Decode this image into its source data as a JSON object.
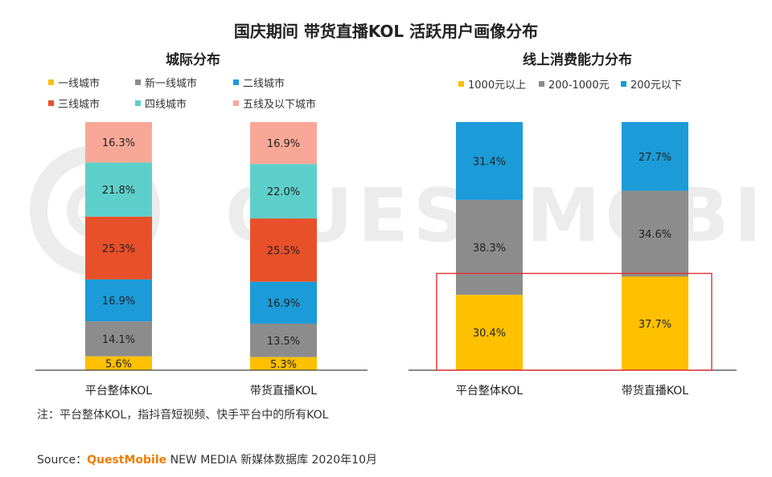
{
  "title": "国庆期间 带货直播KOL 活跃用户画像分布",
  "watermark": "QUESTMOBILE",
  "colors": {
    "tier1": "#FFC000",
    "new_tier1": "#8C8C8C",
    "tier2": "#1B9BD7",
    "tier3": "#E8502A",
    "tier4": "#5DCFCB",
    "tier5plus": "#F9A898",
    "above1000": "#FFC000",
    "mid": "#8C8C8C",
    "below200": "#1B9BD7",
    "highlight_box": "#E03030",
    "brand": "#F07D00"
  },
  "chart_data": [
    {
      "type": "bar",
      "stacked": true,
      "title": "城际分布",
      "categories": [
        "平台整体KOL",
        "带货直播KOL"
      ],
      "series": [
        {
          "name": "一线城市",
          "values": [
            5.6,
            5.3
          ]
        },
        {
          "name": "新一线城市",
          "values": [
            14.1,
            13.5
          ]
        },
        {
          "name": "二线城市",
          "values": [
            16.9,
            16.9
          ]
        },
        {
          "name": "三线城市",
          "values": [
            25.3,
            25.5
          ]
        },
        {
          "name": "四线城市",
          "values": [
            21.8,
            22.0
          ]
        },
        {
          "name": "五线及以下城市",
          "values": [
            16.3,
            16.9
          ]
        }
      ],
      "value_suffix": "%",
      "ylim": [
        0,
        100
      ],
      "legend": "top"
    },
    {
      "type": "bar",
      "stacked": true,
      "title": "线上消费能力分布",
      "categories": [
        "平台整体KOL",
        "带货直播KOL"
      ],
      "series": [
        {
          "name": "1000元以上",
          "values": [
            30.4,
            37.7
          ]
        },
        {
          "name": "200-1000元",
          "values": [
            38.3,
            34.6
          ]
        },
        {
          "name": "200元以下",
          "values": [
            31.4,
            27.7
          ]
        }
      ],
      "value_suffix": "%",
      "ylim": [
        0,
        100
      ],
      "legend": "top",
      "annotation": "1000元以上 segment highlighted with red box"
    }
  ],
  "footer": {
    "note": "注：平台整体KOL，指抖音短视频、快手平台中的所有KOL",
    "source_prefix": "Source：",
    "source_brand": "QuestMobile",
    "source_rest": " NEW MEDIA 新媒体数据库 2020年10月"
  }
}
